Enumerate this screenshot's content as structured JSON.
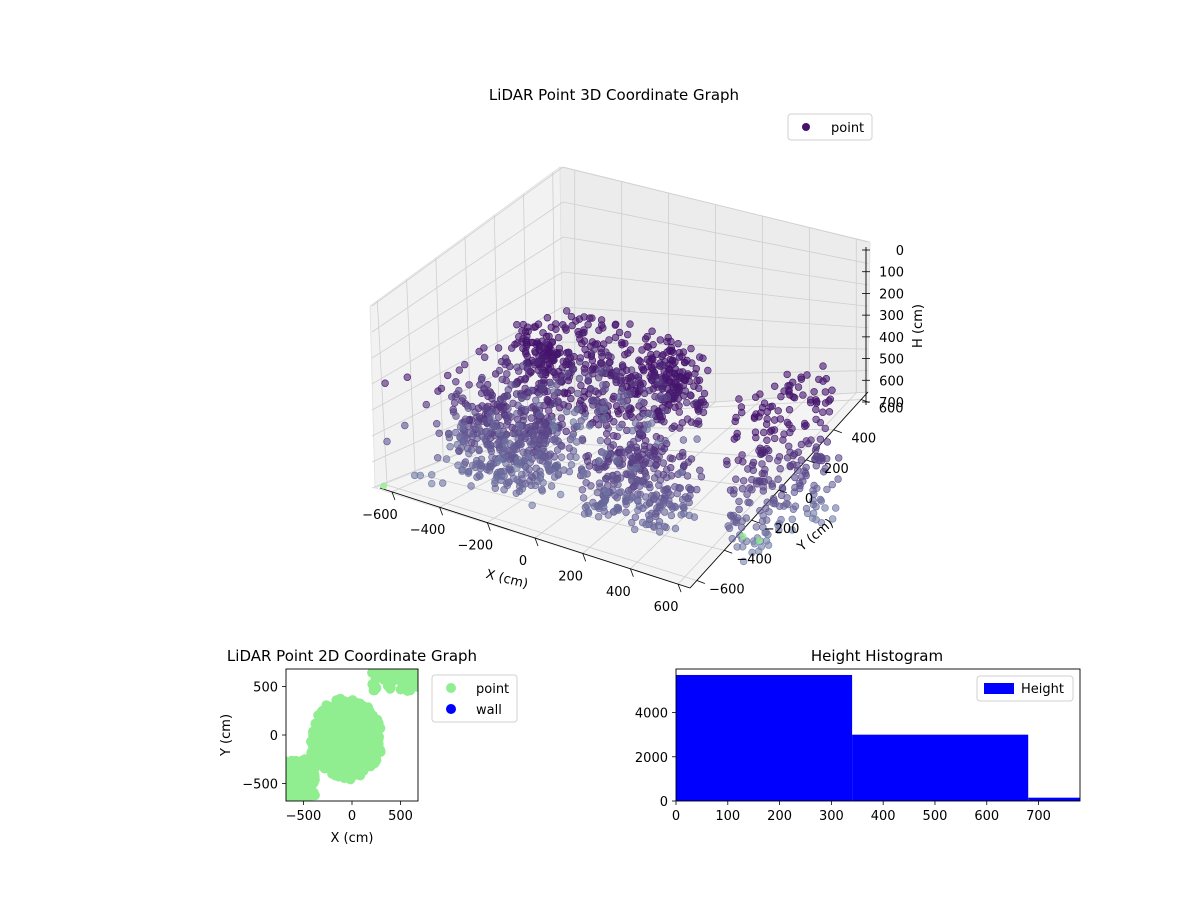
{
  "chart_data": [
    {
      "type": "scatter",
      "projection": "3d",
      "title": "LiDAR Point 3D Coordinate Graph",
      "xlabel": "X (cm)",
      "ylabel": "Y (cm)",
      "zlabel": "H (cm)",
      "xticks": [
        "−600",
        "−400",
        "−200",
        "0",
        "200",
        "400",
        "600"
      ],
      "yticks": [
        "−600",
        "−400",
        "−200",
        "0",
        "200",
        "400",
        "600"
      ],
      "zticks": [
        "0",
        "100",
        "200",
        "300",
        "400",
        "500",
        "600",
        "700"
      ],
      "xlim": [
        -650,
        650
      ],
      "ylim": [
        -650,
        650
      ],
      "zlim": [
        700,
        0
      ],
      "z_axis_inverted": true,
      "legend": {
        "entries": [
          "point"
        ],
        "location": "upper-right"
      },
      "colors": {
        "point": "#44146c",
        "low": "#44146c",
        "high": "#86a9bf",
        "green": "#90ee90"
      },
      "grid": true,
      "series": [
        {
          "name": "point",
          "clusters": [
            {
              "shape": "ring",
              "cx": -60,
              "cy": -10,
              "r": 360,
              "z": [
                20,
                300
              ],
              "note": ""
            },
            {
              "shape": "arc",
              "cx": -60,
              "cy": -10,
              "r": 520,
              "z": [
                250,
                620
              ]
            },
            {
              "shape": "lobes",
              "x": [
                -420,
                -80
              ],
              "y": [
                -520,
                -120
              ],
              "z": [
                300,
                600
              ]
            },
            {
              "shape": "wall",
              "x": [
                560,
                630
              ],
              "y": [
                -250,
                450
              ],
              "z": [
                0,
                700
              ]
            }
          ],
          "scattered_points": "sparse outliers around the field"
        }
      ]
    },
    {
      "type": "scatter",
      "title": "LiDAR Point 2D Coordinate Graph",
      "xlabel": "X (cm)",
      "ylabel": "Y (cm)",
      "xlim": [
        -680,
        680
      ],
      "ylim": [
        -680,
        680
      ],
      "xticks": [
        "−500",
        "0",
        "500"
      ],
      "yticks": [
        "500",
        "0",
        "−500"
      ],
      "legend": {
        "entries": [
          "point",
          "wall"
        ],
        "location": "outside-right"
      },
      "colors": {
        "point": "#90ee90",
        "wall": "#0000ff"
      },
      "series": [
        {
          "name": "point",
          "region": "blob",
          "x": [
            -700,
            700
          ],
          "y": [
            -700,
            700
          ]
        },
        {
          "name": "wall",
          "points": []
        }
      ]
    },
    {
      "type": "bar",
      "title": "Height Histogram",
      "xlabel": "",
      "ylabel": "",
      "bins": [
        [
          0,
          340
        ],
        [
          340,
          680
        ],
        [
          680,
          780
        ]
      ],
      "values": [
        5700,
        3000,
        150
      ],
      "xlim": [
        0,
        780
      ],
      "ylim": [
        0,
        5970
      ],
      "xticks": [
        "0",
        "100",
        "200",
        "300",
        "400",
        "500",
        "600",
        "700"
      ],
      "yticks": [
        "0",
        "2000",
        "4000"
      ],
      "legend": {
        "entries": [
          "Height"
        ],
        "location": "upper-right"
      },
      "colors": {
        "bar": "#0000ff"
      }
    }
  ]
}
